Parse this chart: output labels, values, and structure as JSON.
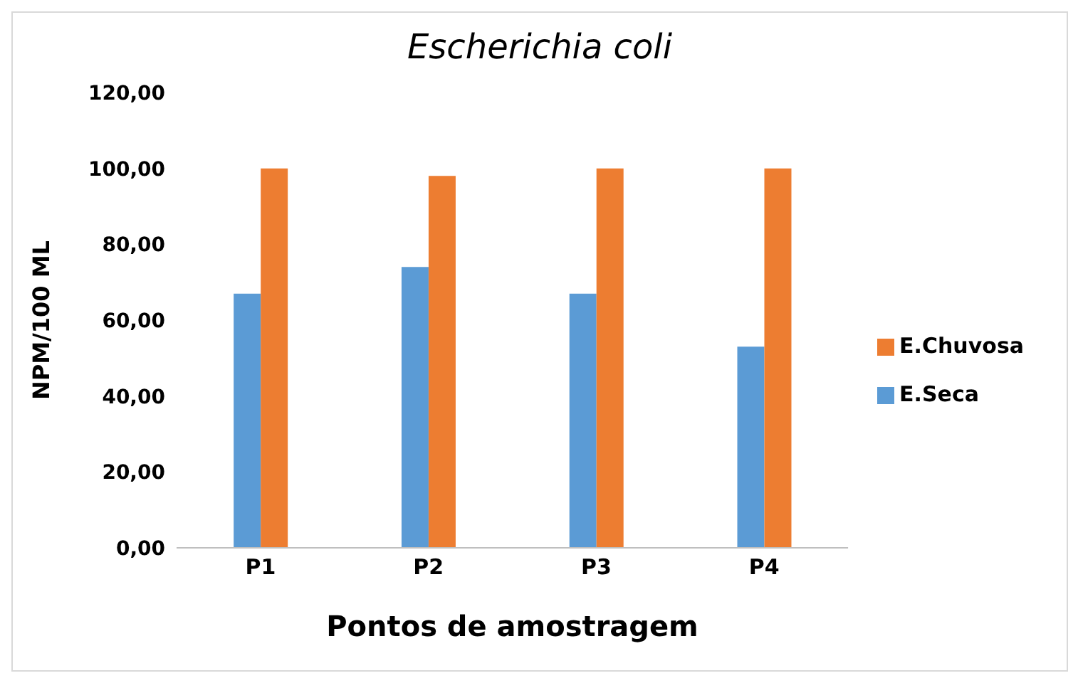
{
  "chart_data": {
    "type": "bar",
    "title": "Escherichia coli",
    "xlabel": "Pontos de amostragem",
    "ylabel": "NPM/100 ML",
    "categories": [
      "P1",
      "P2",
      "P3",
      "P4"
    ],
    "series": [
      {
        "name": "E.Seca",
        "color": "#5b9bd5",
        "values": [
          67,
          74,
          67,
          53
        ]
      },
      {
        "name": "E.Chuvosa",
        "color": "#ed7d31",
        "values": [
          100,
          98,
          100,
          100
        ]
      }
    ],
    "ylim": [
      0,
      120
    ],
    "yticks": [
      {
        "value": 0,
        "label": "0,00"
      },
      {
        "value": 20,
        "label": "20,00"
      },
      {
        "value": 40,
        "label": "40,00"
      },
      {
        "value": 60,
        "label": "60,00"
      },
      {
        "value": 80,
        "label": "80,00"
      },
      {
        "value": 100,
        "label": "100,00"
      },
      {
        "value": 120,
        "label": "120,00"
      }
    ],
    "grid": false,
    "legend": "right"
  }
}
